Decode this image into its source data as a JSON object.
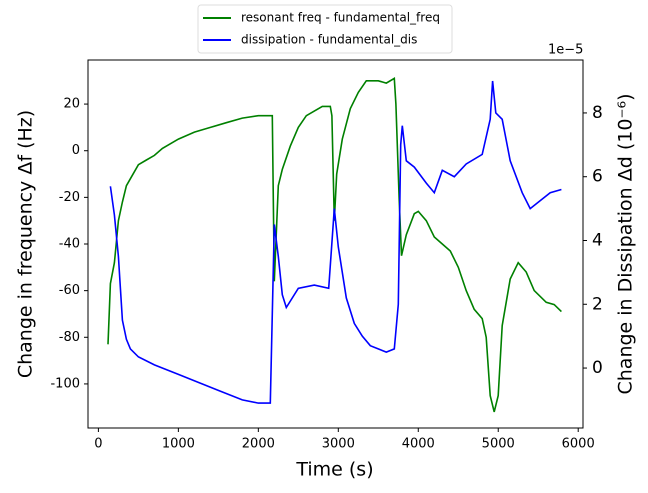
{
  "chart_data": {
    "type": "line",
    "xlabel": "Time (s)",
    "ylabel": "Change in frequency Δf (Hz)",
    "y2label": "Change in Dissipation Δd (10⁻⁶)",
    "y2offset": "1e−5",
    "xlim": [
      -130,
      6060
    ],
    "xticks": [
      0,
      1000,
      2000,
      3000,
      4000,
      5000,
      6000
    ],
    "ylim": [
      -118.9,
      38.9
    ],
    "yticks": [
      -100,
      -80,
      -60,
      -40,
      -20,
      0,
      20
    ],
    "y2lim": [
      -1.88,
      9.66
    ],
    "y2ticks": [
      0,
      2,
      4,
      6,
      8
    ],
    "grid": false,
    "legend": "upper center",
    "series": [
      {
        "name": "resonant freq - fundamental_freq",
        "color": "#008000",
        "axis": "y",
        "x": [
          120,
          150,
          200,
          250,
          300,
          350,
          400,
          500,
          600,
          700,
          800,
          1000,
          1200,
          1400,
          1600,
          1800,
          2000,
          2150,
          2175,
          2200,
          2250,
          2300,
          2400,
          2500,
          2600,
          2700,
          2800,
          2900,
          2920,
          2950,
          2980,
          3050,
          3150,
          3250,
          3350,
          3500,
          3600,
          3700,
          3720,
          3760,
          3790,
          3850,
          3950,
          4000,
          4100,
          4200,
          4300,
          4400,
          4500,
          4600,
          4700,
          4800,
          4850,
          4900,
          4950,
          5000,
          5050,
          5150,
          5250,
          5350,
          5450,
          5600,
          5700,
          5790
        ],
        "values": [
          -83,
          -57,
          -48,
          -30,
          -22,
          -15,
          -12,
          -6,
          -4,
          -2,
          1,
          5,
          8,
          10,
          12,
          14,
          15,
          15,
          15,
          -56,
          -15,
          -8,
          2,
          10,
          15,
          17,
          19,
          19,
          15,
          -30,
          -10,
          5,
          18,
          25,
          30,
          30,
          29,
          31,
          20,
          -20,
          -45,
          -36,
          -27,
          -26,
          -30,
          -37,
          -40,
          -43,
          -50,
          -60,
          -68,
          -72,
          -80,
          -105,
          -112,
          -105,
          -75,
          -55,
          -48,
          -52,
          -60,
          -65,
          -66,
          -69
        ]
      },
      {
        "name": "dissipation - fundamental_dis",
        "color": "#0000ff",
        "axis": "y2",
        "x": [
          150,
          200,
          250,
          300,
          350,
          400,
          500,
          700,
          1000,
          1300,
          1500,
          1800,
          2000,
          2150,
          2200,
          2250,
          2300,
          2350,
          2500,
          2700,
          2880,
          2950,
          3000,
          3100,
          3200,
          3300,
          3400,
          3600,
          3700,
          3750,
          3780,
          3800,
          3850,
          3950,
          4100,
          4200,
          4300,
          4450,
          4600,
          4800,
          4900,
          4930,
          4970,
          5050,
          5150,
          5300,
          5400,
          5500,
          5650,
          5790
        ],
        "values": [
          5.7,
          4.8,
          3.5,
          1.5,
          0.9,
          0.6,
          0.35,
          0.1,
          -0.2,
          -0.5,
          -0.7,
          -1.0,
          -1.1,
          -1.1,
          4.5,
          3.5,
          2.3,
          1.9,
          2.5,
          2.6,
          2.5,
          5.0,
          3.8,
          2.2,
          1.4,
          1.0,
          0.7,
          0.5,
          0.6,
          2.0,
          7.0,
          7.6,
          6.5,
          6.3,
          5.8,
          5.5,
          6.2,
          6.0,
          6.4,
          6.7,
          7.8,
          9.0,
          8.0,
          7.8,
          6.5,
          5.5,
          5.0,
          5.2,
          5.5,
          5.6
        ]
      }
    ]
  }
}
